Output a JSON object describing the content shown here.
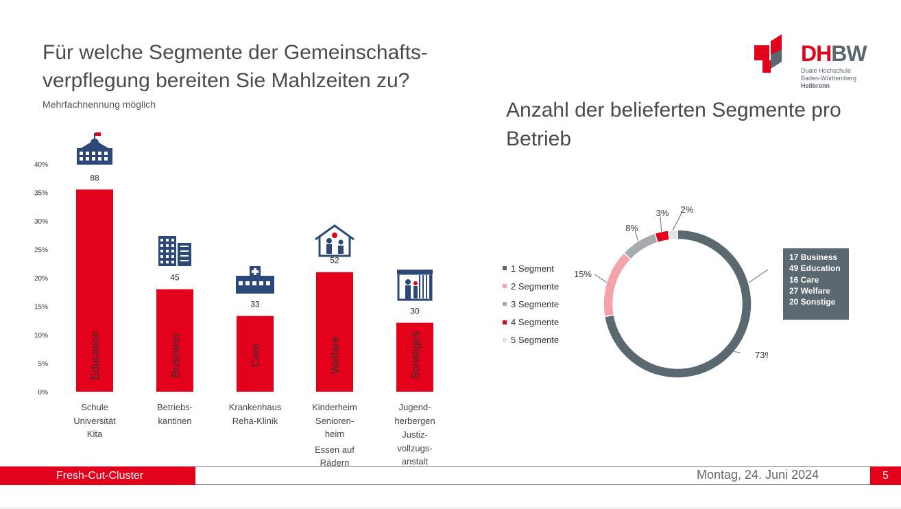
{
  "slide": {
    "title_line1": "Für welche Segmente der Gemeinschafts-",
    "title_line2": "verpflegung bereiten Sie Mahlzeiten zu?",
    "subtitle": "Mehrfachnennung möglich",
    "donut_title": "Anzahl der belieferten Segmente pro Betrieb"
  },
  "logo": {
    "dh": "DH",
    "bw": "BW",
    "line1": "Duale Hochschule",
    "line2": "Baden-Württemberg",
    "line3": "Heilbronn"
  },
  "footer": {
    "project": "Fresh-Cut-Cluster",
    "date": "Montag, 24. Juni 2024",
    "page": "5"
  },
  "info_box": [
    "17 Business",
    "49 Education",
    "16 Care",
    "27 Welfare",
    "20 Sonstige"
  ],
  "colors": {
    "red": "#e2001a",
    "dark_gray": "#5c6870",
    "pink": "#f4a3ab",
    "gray": "#a6abb0",
    "light_gray": "#e3e3e3",
    "icon_blue": "#2b4878"
  },
  "chart_data": [
    {
      "type": "bar",
      "categories": [
        "Education",
        "Business",
        "Care",
        "Welfare",
        "Sonstiges"
      ],
      "values": [
        0.355,
        0.18,
        0.133,
        0.21,
        0.121
      ],
      "data_labels": [
        "88",
        "45",
        "33",
        "52",
        "30"
      ],
      "category_descriptions": [
        [
          "Schule",
          "Universität",
          "Kita"
        ],
        [
          "Betriebs-",
          "kantinen"
        ],
        [
          "Krankenhaus",
          "Reha-Klinik"
        ],
        [
          "Kinderheim",
          "Senioren-",
          "heim",
          "Essen auf",
          "Rädern"
        ],
        [
          "Jugend-",
          "herbergen",
          "Justiz-",
          "vollzugs-",
          "anstalt"
        ]
      ],
      "icons": [
        "school-icon",
        "office-building-icon",
        "hospital-icon",
        "care-home-icon",
        "detention-icon"
      ],
      "y_ticks": [
        "0%",
        "5%",
        "10%",
        "15%",
        "20%",
        "25%",
        "30%",
        "35%",
        "40%"
      ],
      "ylim": [
        0,
        0.4
      ],
      "grid": false
    },
    {
      "type": "pie",
      "title": "Anzahl der belieferten Segmente pro Betrieb",
      "labels": [
        "1 Segment",
        "2 Segmente",
        "3 Segmente",
        "4 Segmente",
        "5 Segmente"
      ],
      "values": [
        73,
        15,
        8,
        3,
        2
      ],
      "data_labels": [
        "73%",
        "15%",
        "8%",
        "3%",
        "2%"
      ],
      "colors": [
        "#5c6870",
        "#f4a3ab",
        "#a6abb0",
        "#e2001a",
        "#e3e3e3"
      ],
      "donut": true,
      "legend": "left"
    }
  ]
}
